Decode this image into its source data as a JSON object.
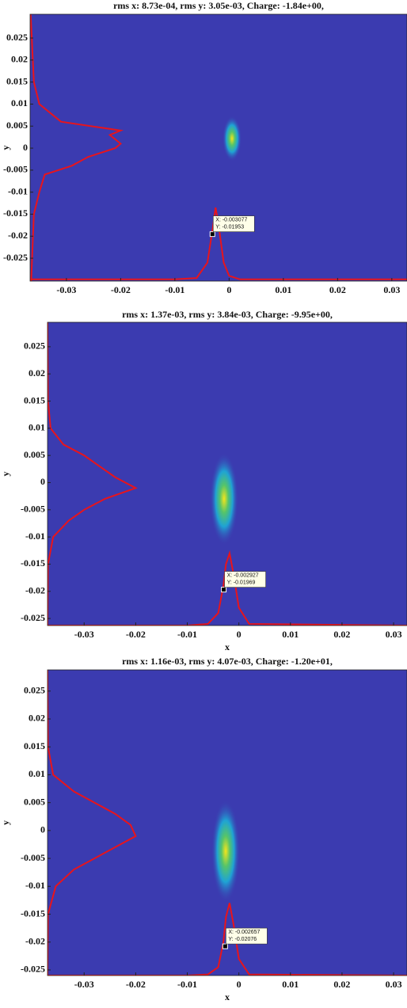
{
  "chart_data": [
    {
      "type": "heatmap",
      "title": "rms x: 8.73e-04, rms y: 3.05e-03, Charge: -1.84e+00,",
      "ylabel": "y",
      "xlim": [
        -0.0367,
        0.0328
      ],
      "ylim": [
        -0.0302,
        0.0304
      ],
      "xticks": [
        -0.03,
        -0.02,
        -0.01,
        0,
        0.01,
        0.02,
        0.03
      ],
      "yticks": [
        -0.025,
        -0.02,
        -0.015,
        -0.01,
        -0.005,
        0,
        0.005,
        0.01,
        0.015,
        0.02,
        0.025
      ],
      "color": "#e8141c",
      "xprofile": {
        "x": [
          -0.0367,
          -0.01,
          -0.006,
          -0.004,
          -0.003,
          -0.0025,
          -0.002,
          -0.001,
          0,
          0.002,
          0.0328
        ],
        "values": [
          -0.0298,
          -0.0298,
          -0.0295,
          -0.026,
          -0.018,
          -0.0135,
          -0.017,
          -0.026,
          -0.029,
          -0.0298,
          -0.0298
        ]
      },
      "yprofile": {
        "y": [
          -0.0302,
          -0.015,
          -0.01,
          -0.006,
          -0.004,
          -0.002,
          0,
          0.001,
          0.003,
          0.004,
          0.006,
          0.01,
          0.015,
          0.0304
        ],
        "values": [
          -0.0365,
          -0.036,
          -0.035,
          -0.034,
          -0.029,
          -0.026,
          -0.021,
          -0.02,
          -0.022,
          -0.02,
          -0.031,
          -0.035,
          -0.036,
          -0.0366
        ]
      },
      "tip_x": -0.003077,
      "tip_y": -0.01953,
      "tip_labels": [
        "X: -0.003077",
        "Y: -0.01953"
      ]
    },
    {
      "type": "heatmap",
      "title": "rms x: 1.37e-03, rms y: 3.84e-03, Charge: -9.95e+00,",
      "xlabel": "x",
      "ylabel": "y",
      "xlim": [
        -0.0371,
        0.0326
      ],
      "ylim": [
        -0.0263,
        0.0295
      ],
      "xticks": [
        -0.03,
        -0.02,
        -0.01,
        0,
        0.01,
        0.02,
        0.03
      ],
      "yticks": [
        -0.025,
        -0.02,
        -0.015,
        -0.01,
        -0.005,
        0,
        0.005,
        0.01,
        0.015,
        0.02,
        0.025
      ],
      "color": "#e8141c",
      "xprofile": {
        "x": [
          -0.0371,
          -0.01,
          -0.006,
          -0.004,
          -0.003,
          -0.0025,
          -0.0018,
          -0.001,
          0,
          0.002,
          0.0326
        ],
        "values": [
          -0.0263,
          -0.0263,
          -0.026,
          -0.024,
          -0.019,
          -0.015,
          -0.013,
          -0.017,
          -0.023,
          -0.026,
          -0.0263
        ]
      },
      "yprofile": {
        "y": [
          -0.0263,
          -0.015,
          -0.01,
          -0.007,
          -0.005,
          -0.003,
          -0.001,
          0.001,
          0.003,
          0.005,
          0.007,
          0.01,
          0.015,
          0.0295
        ],
        "values": [
          -0.0371,
          -0.037,
          -0.036,
          -0.033,
          -0.03,
          -0.026,
          -0.02,
          -0.024,
          -0.027,
          -0.03,
          -0.034,
          -0.0365,
          -0.037,
          -0.0371
        ]
      },
      "tip_x": -0.002927,
      "tip_y": -0.01969,
      "tip_labels": [
        "X: -0.002927",
        "Y: -0.01969"
      ]
    },
    {
      "type": "heatmap",
      "title": "rms x: 1.16e-03, rms y: 4.07e-03, Charge: -1.20e+01,",
      "xlabel": "x",
      "ylabel": "y",
      "xlim": [
        -0.0371,
        0.0326
      ],
      "ylim": [
        -0.026,
        0.0288
      ],
      "xticks": [
        -0.03,
        -0.02,
        -0.01,
        0,
        0.01,
        0.02,
        0.03
      ],
      "yticks": [
        -0.025,
        -0.02,
        -0.015,
        -0.01,
        -0.005,
        0,
        0.005,
        0.01,
        0.015,
        0.02,
        0.025
      ],
      "color": "#e8141c",
      "xprofile": {
        "x": [
          -0.0371,
          -0.01,
          -0.006,
          -0.004,
          -0.003,
          -0.0025,
          -0.0018,
          -0.001,
          0,
          0.002,
          0.0326
        ],
        "values": [
          -0.026,
          -0.026,
          -0.0258,
          -0.0245,
          -0.02,
          -0.0155,
          -0.013,
          -0.017,
          -0.023,
          -0.0258,
          -0.026
        ]
      },
      "yprofile": {
        "y": [
          -0.026,
          -0.015,
          -0.01,
          -0.007,
          -0.005,
          -0.003,
          -0.001,
          0.001,
          0.003,
          0.005,
          0.007,
          0.01,
          0.015,
          0.0288
        ],
        "values": [
          -0.0371,
          -0.037,
          -0.0355,
          -0.032,
          -0.028,
          -0.024,
          -0.02,
          -0.021,
          -0.024,
          -0.028,
          -0.032,
          -0.036,
          -0.037,
          -0.0371
        ]
      },
      "tip_x": -0.002657,
      "tip_y": -0.02076,
      "tip_labels": [
        "X: -0.002657",
        "Y: -0.02076"
      ]
    }
  ]
}
